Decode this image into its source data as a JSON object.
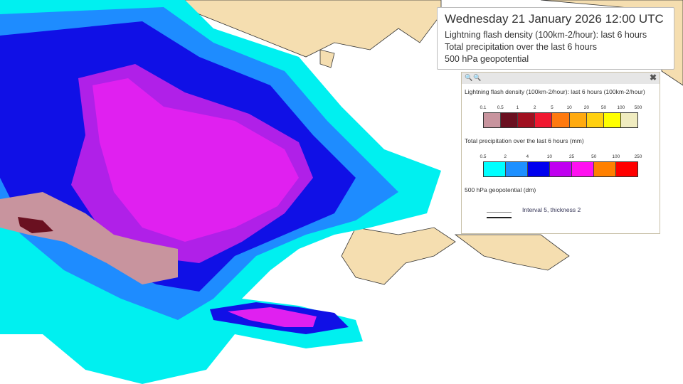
{
  "header": {
    "datetime": "Wednesday 21 January 2026 12:00 UTC",
    "layers": [
      "Lightning flash density (100km-2/hour): last 6 hours",
      "Total precipitation over the last 6 hours",
      "500 hPa geopotential"
    ]
  },
  "legend": {
    "toolbar_icons": [
      "zoom-in-icon",
      "zoom-out-icon",
      "close-icon"
    ],
    "close_label": "✖",
    "lightning": {
      "title": "Lightning flash density (100km-2/hour): last 6 hours (100km-2/hour)",
      "ticks": [
        "0.1",
        "0.5",
        "1",
        "2",
        "5",
        "10",
        "20",
        "50",
        "100",
        "500"
      ],
      "colors": [
        "#c8949e",
        "#6a1020",
        "#a01020",
        "#f01830",
        "#ff7a10",
        "#ffaa10",
        "#ffd010",
        "#ffff00",
        "#f0ecc0"
      ]
    },
    "precipitation": {
      "title": "Total precipitation over the last 6 hours (mm)",
      "ticks": [
        "0.5",
        "2",
        "4",
        "10",
        "25",
        "50",
        "100",
        "250"
      ],
      "colors": [
        "#00ffff",
        "#1e90ff",
        "#0000ee",
        "#c000f0",
        "#ff10f0",
        "#ff8000",
        "#ff0000"
      ]
    },
    "geopotential": {
      "title": "500 hPa geopotential (dm)",
      "interval_label": "Interval 5, thickness 2"
    }
  },
  "map_colors": {
    "sea": "#ffffff",
    "land": "#f5deb0",
    "coast": "#333333"
  }
}
